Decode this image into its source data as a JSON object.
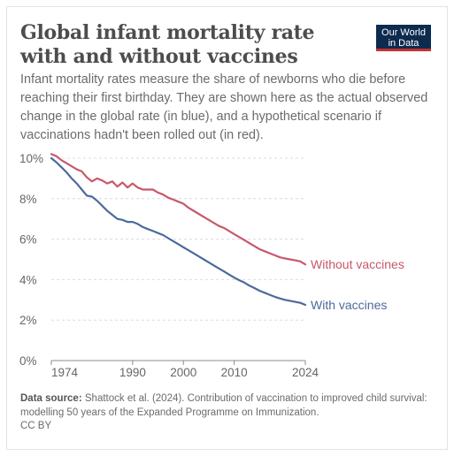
{
  "header": {
    "title": "Global infant mortality rate with and without vaccines",
    "subtitle": "Infant mortality rates measure the share of newborns who die before reaching their first birthday. They are shown here as the actual observed change in the global rate (in blue), and a hypothetical scenario if vaccinations hadn't been rolled out (in red).",
    "logo_line1": "Our World",
    "logo_line2": "in Data"
  },
  "footer": {
    "source_label": "Data source:",
    "source_text": "Shattock et al. (2024). Contribution of vaccination to improved child survival: modelling 50 years of the Expanded Programme on Immunization.",
    "license": "CC BY"
  },
  "colors": {
    "with_vaccines": "#4c6a9c",
    "without_vaccines": "#c8586a",
    "logo_bg": "#0d2a4f",
    "logo_accent": "#c4322f"
  },
  "chart_data": {
    "type": "line",
    "title": "Global infant mortality rate with and without vaccines",
    "xlabel": "",
    "ylabel": "",
    "xlim": [
      1974,
      2024
    ],
    "ylim": [
      0,
      10
    ],
    "x_ticks": [
      "1974",
      "1990",
      "2000",
      "2010",
      "2024"
    ],
    "y_ticks": [
      "0%",
      "2%",
      "4%",
      "6%",
      "8%",
      "10%"
    ],
    "y_tick_values": [
      0,
      2,
      4,
      6,
      8,
      10
    ],
    "x_tick_values": [
      1974,
      1990,
      2000,
      2010,
      2024
    ],
    "grid": true,
    "series": [
      {
        "name": "Without vaccines",
        "color": "#c8586a",
        "x": [
          1974,
          1975,
          1976,
          1977,
          1978,
          1979,
          1980,
          1981,
          1982,
          1983,
          1984,
          1985,
          1986,
          1987,
          1988,
          1989,
          1990,
          1991,
          1992,
          1993,
          1994,
          1995,
          1996,
          1997,
          1998,
          1999,
          2000,
          2001,
          2002,
          2003,
          2004,
          2005,
          2006,
          2007,
          2008,
          2009,
          2010,
          2011,
          2012,
          2013,
          2014,
          2015,
          2016,
          2017,
          2018,
          2019,
          2020,
          2021,
          2022,
          2023,
          2024
        ],
        "values": [
          10.2,
          10.1,
          9.9,
          9.75,
          9.6,
          9.45,
          9.35,
          9.05,
          8.85,
          9.0,
          8.9,
          8.75,
          8.85,
          8.6,
          8.8,
          8.55,
          8.75,
          8.55,
          8.45,
          8.45,
          8.45,
          8.3,
          8.2,
          8.05,
          7.95,
          7.85,
          7.75,
          7.55,
          7.4,
          7.25,
          7.1,
          6.95,
          6.8,
          6.65,
          6.55,
          6.4,
          6.25,
          6.1,
          5.95,
          5.8,
          5.65,
          5.5,
          5.4,
          5.3,
          5.2,
          5.1,
          5.05,
          5.0,
          4.95,
          4.9,
          4.75
        ]
      },
      {
        "name": "With vaccines",
        "color": "#4c6a9c",
        "x": [
          1974,
          1975,
          1976,
          1977,
          1978,
          1979,
          1980,
          1981,
          1982,
          1983,
          1984,
          1985,
          1986,
          1987,
          1988,
          1989,
          1990,
          1991,
          1992,
          1993,
          1994,
          1995,
          1996,
          1997,
          1998,
          1999,
          2000,
          2001,
          2002,
          2003,
          2004,
          2005,
          2006,
          2007,
          2008,
          2009,
          2010,
          2011,
          2012,
          2013,
          2014,
          2015,
          2016,
          2017,
          2018,
          2019,
          2020,
          2021,
          2022,
          2023,
          2024
        ],
        "values": [
          10.0,
          9.8,
          9.55,
          9.3,
          9.0,
          8.75,
          8.45,
          8.15,
          8.1,
          7.9,
          7.65,
          7.4,
          7.2,
          7.0,
          6.95,
          6.85,
          6.85,
          6.75,
          6.6,
          6.5,
          6.4,
          6.3,
          6.2,
          6.05,
          5.9,
          5.75,
          5.6,
          5.45,
          5.3,
          5.15,
          5.0,
          4.85,
          4.7,
          4.55,
          4.4,
          4.25,
          4.1,
          3.97,
          3.85,
          3.7,
          3.58,
          3.45,
          3.35,
          3.25,
          3.15,
          3.07,
          3.0,
          2.95,
          2.9,
          2.85,
          2.75
        ]
      }
    ]
  }
}
